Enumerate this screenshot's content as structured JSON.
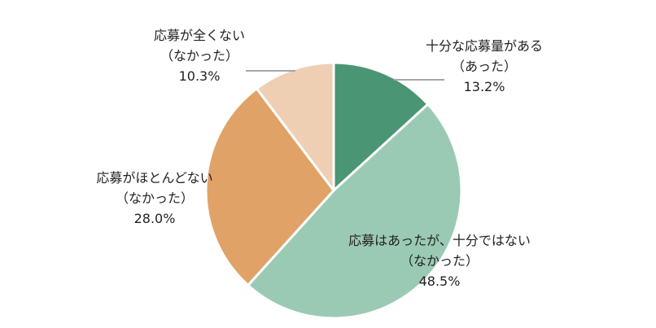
{
  "chart_data": {
    "type": "pie",
    "title": "",
    "start_angle_deg": 0,
    "direction": "clockwise",
    "slices": [
      {
        "name": "十分な応募量がある（あった）",
        "line1": "十分な応募量がある",
        "line2": "（あった）",
        "value": 13.2,
        "value_label": "13.2%",
        "color": "#4A9574"
      },
      {
        "name": "応募はあったが、十分ではない（なかった）",
        "line1": "応募はあったが、十分ではない",
        "line2": "（なかった）",
        "value": 48.5,
        "value_label": "48.5%",
        "color": "#9BCAB4"
      },
      {
        "name": "応募がほとんどない（なかった）",
        "line1": "応募がほとんどない",
        "line2": "（なかった）",
        "value": 28.0,
        "value_label": "28.0%",
        "color": "#E1A268"
      },
      {
        "name": "応募が全くない（なかった）",
        "line1": "応募が全くない",
        "line2": "（なかった）",
        "value": 10.3,
        "value_label": "10.3%",
        "color": "#EFCFB4"
      }
    ],
    "legend": "none",
    "data_labels": "outside/inside with leader lines"
  }
}
